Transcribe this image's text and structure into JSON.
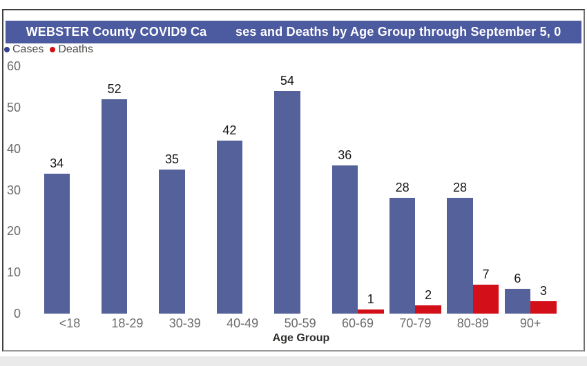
{
  "page": {
    "background": "#ffffff",
    "frame_border_color": "#3f3f3f",
    "bottom_strip_color": "#eaeaea"
  },
  "header": {
    "title": "WEBSTER County COVID9 Ca        ses and Deaths by Age Group through September 5, 0",
    "background": "#4c5aa0",
    "text_color": "#ffffff"
  },
  "legend": {
    "items": [
      {
        "label": "Cases",
        "color": "#333f8f"
      },
      {
        "label": "Deaths",
        "color": "#d01015"
      }
    ]
  },
  "chart_data": {
    "type": "bar",
    "title": "WEBSTER County COVID9 Ca        ses and Deaths by Age Group through September 5, 0",
    "categories": [
      "<18",
      "18-29",
      "30-39",
      "40-49",
      "50-59",
      "60-69",
      "70-79",
      "80-89",
      "90+"
    ],
    "series": [
      {
        "name": "Cases",
        "color": "#55619a",
        "values": [
          34,
          52,
          35,
          42,
          54,
          36,
          28,
          28,
          6
        ]
      },
      {
        "name": "Deaths",
        "color": "#d3101a",
        "values": [
          0,
          0,
          0,
          0,
          0,
          1,
          2,
          7,
          3
        ]
      }
    ],
    "xlabel": "Age Group",
    "ylabel": "",
    "ylim": [
      0,
      60
    ],
    "yticks": [
      0,
      10,
      20,
      30,
      40,
      50,
      60
    ],
    "grid": false,
    "legend_position": "top-left",
    "value_labels_shown": true,
    "zero_value_bars_hidden": true,
    "colors": {
      "axis_text": "#6b6b6b",
      "value_label_text": "#161616",
      "axis_title_text": "#2f2d2b"
    }
  }
}
